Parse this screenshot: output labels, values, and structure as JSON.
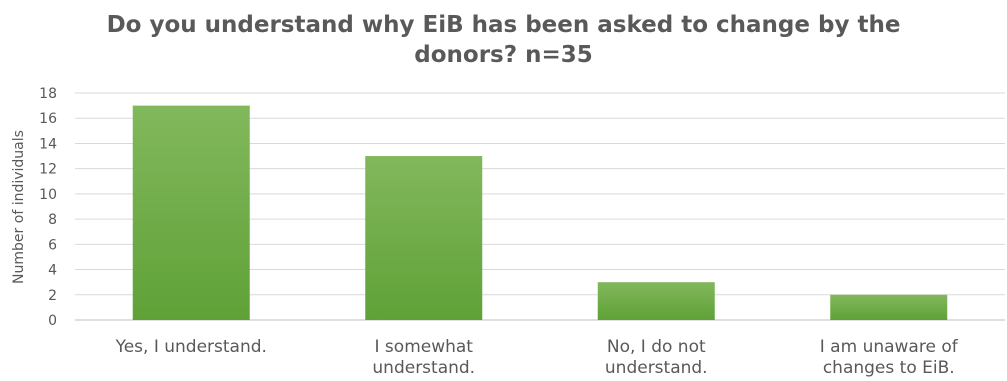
{
  "chart_data": {
    "type": "bar",
    "title_lines": [
      "Do you understand why EiB has been asked to change by the",
      "donors? n=35"
    ],
    "ylabel": "Number of individuals",
    "xlabel": "",
    "categories": [
      [
        "Yes, I understand."
      ],
      [
        "I somewhat",
        "understand."
      ],
      [
        "No, I do not",
        "understand."
      ],
      [
        "I am unaware of",
        "changes to EiB."
      ]
    ],
    "values": [
      17,
      13,
      3,
      2
    ],
    "ylim": [
      0,
      18
    ],
    "yticks": [
      "0",
      "2",
      "4",
      "6",
      "8",
      "10",
      "12",
      "14",
      "16",
      "18"
    ],
    "grid": true,
    "legend": "none",
    "colors": {
      "bar_top": "#82b85c",
      "bar_bottom": "#5fa137",
      "grid": "#d9d9d9",
      "text": "#595959"
    }
  }
}
